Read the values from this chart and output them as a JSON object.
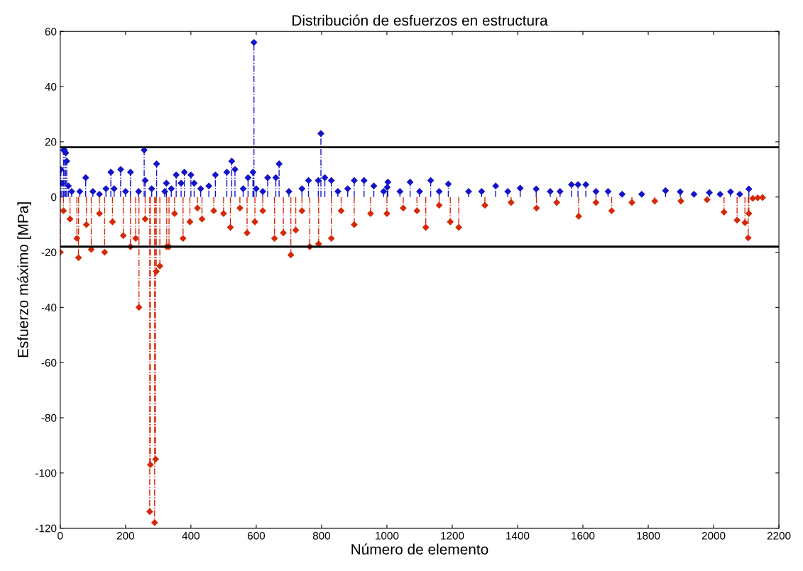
{
  "chart_data": {
    "type": "lollipop",
    "title": "Distribución de esfuerzos en estructura",
    "xlabel": "Número de elemento",
    "ylabel": "Esfuerzo máximo [MPa]",
    "xlim": [
      0,
      2200
    ],
    "xticks": [
      0,
      200,
      400,
      600,
      800,
      1000,
      1200,
      1400,
      1600,
      1800,
      2000,
      2200
    ],
    "ylim": [
      -120,
      60
    ],
    "yticks": [
      -120,
      -100,
      -80,
      -60,
      -40,
      -20,
      0,
      20,
      40,
      60
    ],
    "grid": false,
    "marker": "diamond",
    "line_style": "dashed",
    "ref_lines": [
      {
        "axis": "y",
        "value": 18,
        "color": "#000000",
        "line_style": "solid"
      },
      {
        "axis": "y",
        "value": -18,
        "color": "#000000",
        "line_style": "solid"
      }
    ],
    "series": [
      {
        "color": "#1414c8",
        "x": [
          2,
          5,
          10,
          13,
          17,
          20,
          25,
          35,
          60,
          78,
          100,
          120,
          140,
          155,
          165,
          185,
          200,
          215,
          240,
          257,
          260,
          280,
          295,
          320,
          325,
          340,
          355,
          370,
          380,
          400,
          410,
          430,
          455,
          475,
          510,
          525,
          535,
          560,
          575,
          590,
          593,
          600,
          620,
          635,
          660,
          670,
          700,
          740,
          760,
          790,
          798,
          810,
          830,
          850,
          880,
          900,
          930,
          960,
          990,
          1001,
          1003,
          1040,
          1071,
          1100,
          1134,
          1160,
          1188,
          1250,
          1290,
          1333,
          1370,
          1408,
          1457,
          1500,
          1530,
          1565,
          1585,
          1609,
          1640,
          1677,
          1720,
          1780,
          1853,
          1898,
          1940,
          1987,
          2020,
          2052,
          2080,
          2108
        ],
        "values": [
          10,
          5,
          17,
          17,
          16,
          13,
          4,
          2,
          2,
          7,
          2,
          1,
          3,
          9,
          3,
          10,
          2,
          9,
          2,
          17,
          6,
          3,
          12,
          2,
          5,
          3,
          8,
          5,
          9,
          8,
          5,
          3,
          4,
          8,
          9,
          13,
          10,
          3,
          7,
          9,
          56,
          3,
          2,
          7,
          7,
          12,
          2,
          3,
          6,
          6,
          23,
          7,
          6,
          2,
          3,
          6,
          6,
          4,
          2,
          3.5,
          5.4,
          2,
          5.4,
          2,
          6,
          2,
          4.7,
          2,
          2,
          4,
          2,
          3.2,
          2.9,
          2,
          2,
          4.5,
          4.5,
          4.5,
          2,
          2,
          1,
          1,
          2.3,
          1.9,
          1,
          1.6,
          1,
          1.9,
          1,
          2.9
        ]
      },
      {
        "color": "#d42a0a",
        "x": [
          0,
          10,
          30,
          51,
          56,
          80,
          95,
          120,
          136,
          160,
          193,
          215,
          231,
          241,
          260,
          274,
          276,
          289,
          292,
          294,
          305,
          326,
          333,
          350,
          376,
          397,
          420,
          434,
          470,
          500,
          521,
          550,
          572,
          596,
          620,
          656,
          683,
          706,
          721,
          740,
          764,
          791,
          830,
          860,
          900,
          950,
          1000,
          1050,
          1092,
          1119,
          1160,
          1194,
          1220,
          1300,
          1380,
          1458,
          1520,
          1587,
          1640,
          1688,
          1750,
          1820,
          1900,
          1980,
          2032,
          2072,
          2096,
          2106,
          2108,
          2120,
          2135,
          2150
        ],
        "values": [
          -20,
          -5,
          -8,
          -15,
          -22,
          -10,
          -19,
          -6,
          -20,
          -9,
          -14,
          -18,
          -15,
          -40,
          -8,
          -114,
          -97,
          -118,
          -95,
          -27,
          -25,
          -18,
          -18,
          -6,
          -15,
          -9,
          -4,
          -8,
          -5,
          -6,
          -11,
          -4,
          -13,
          -9,
          -5,
          -15,
          -13,
          -21,
          -12,
          -5,
          -18,
          -17,
          -15,
          -5,
          -10,
          -6,
          -6,
          -4,
          -5,
          -11,
          -3,
          -9,
          -11,
          -3,
          -2,
          -4,
          -2,
          -7,
          -2,
          -5,
          -2,
          -1.5,
          -1.5,
          -1,
          -5.5,
          -8.4,
          -9.3,
          -14.8,
          -6,
          -0.5,
          -0.3,
          -0.2
        ]
      }
    ]
  }
}
